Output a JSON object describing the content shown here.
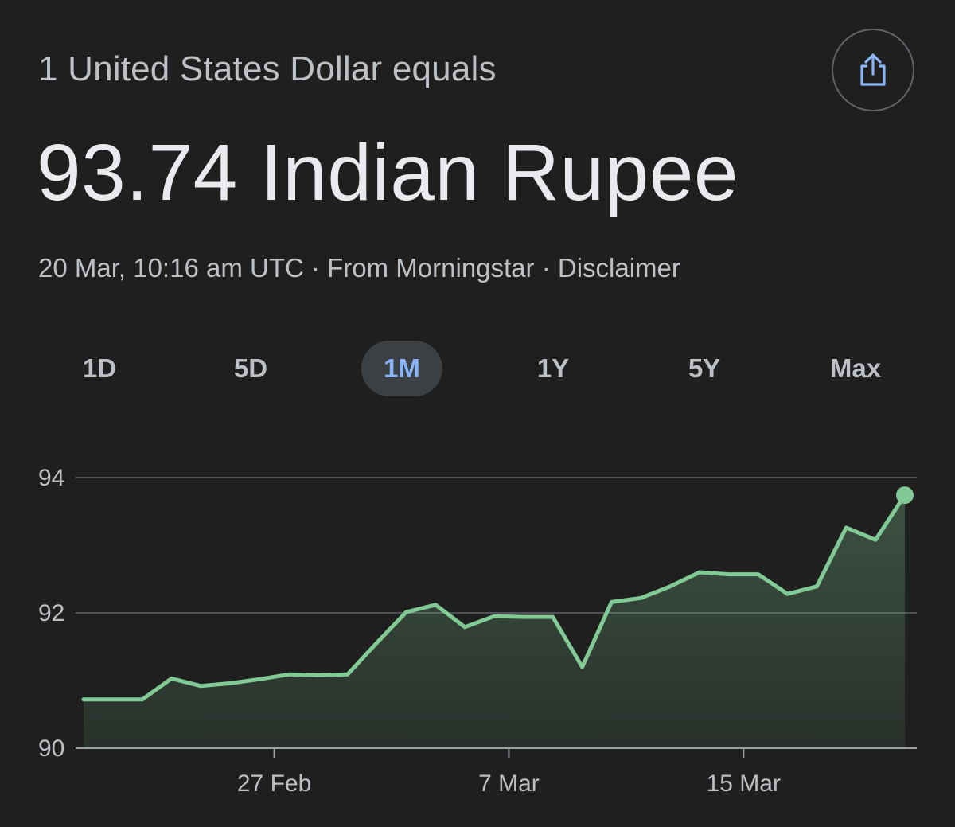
{
  "header": {
    "subtitle": "1 United States Dollar equals",
    "rate": "93.74 Indian Rupee",
    "timestamp": "20 Mar, 10:16 am UTC",
    "separator": " · ",
    "source": "From Morningstar",
    "disclaimer": "Disclaimer",
    "share_icon": "share-icon"
  },
  "ranges": [
    {
      "label": "1D",
      "active": false
    },
    {
      "label": "5D",
      "active": false
    },
    {
      "label": "1M",
      "active": true
    },
    {
      "label": "1Y",
      "active": false
    },
    {
      "label": "5Y",
      "active": false
    },
    {
      "label": "Max",
      "active": false
    }
  ],
  "colors": {
    "background": "#1f1f1f",
    "line": "#81c995",
    "accent": "#8ab4f8",
    "grid": "#5f6368"
  },
  "chart_data": {
    "type": "area",
    "x_labels": [
      "27 Feb",
      "7 Mar",
      "15 Mar"
    ],
    "y_ticks": [
      90,
      92,
      94
    ],
    "ylim": [
      90,
      94
    ],
    "values": [
      90.72,
      90.72,
      90.72,
      91.03,
      90.92,
      90.96,
      91.02,
      91.09,
      91.08,
      91.09,
      91.56,
      92.01,
      92.12,
      91.79,
      91.95,
      91.94,
      91.94,
      91.2,
      92.16,
      92.22,
      92.39,
      92.6,
      92.57,
      92.57,
      92.28,
      92.39,
      93.26,
      93.08,
      93.74
    ],
    "x_label_index": [
      6.5,
      14.5,
      22.5
    ],
    "grid": true,
    "end_marker": true
  }
}
